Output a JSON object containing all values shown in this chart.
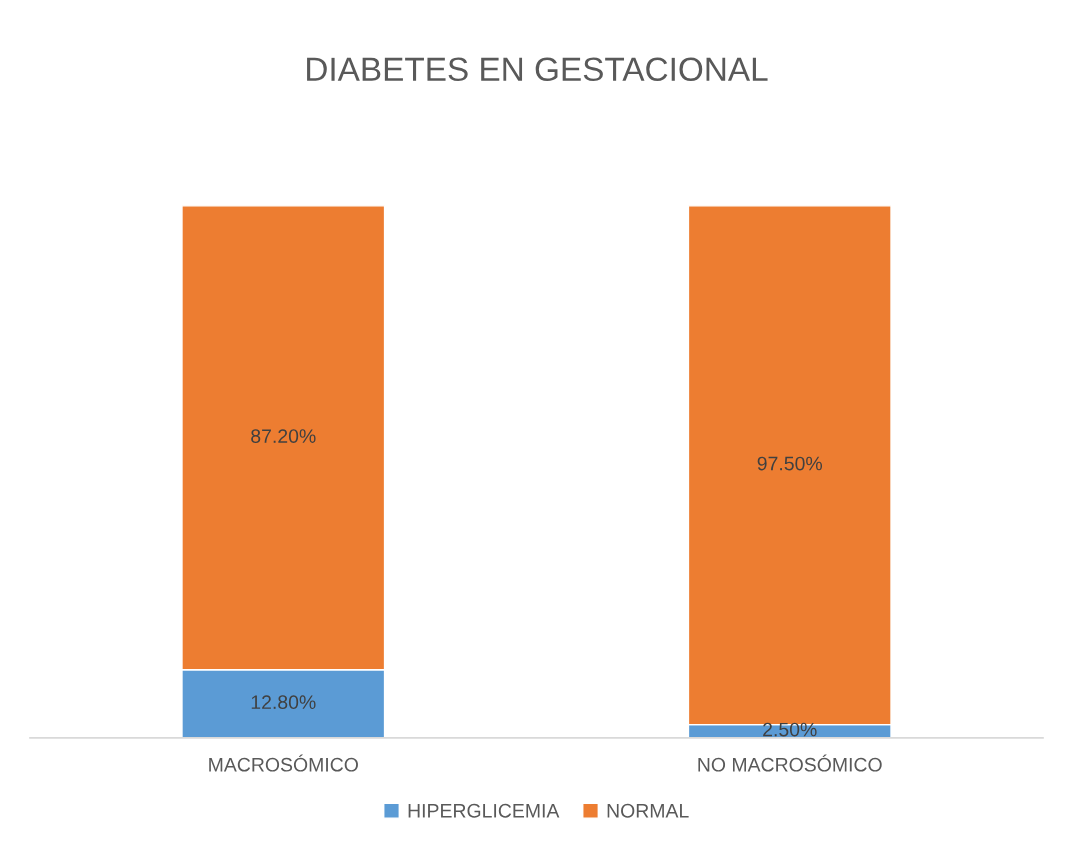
{
  "chart_data": {
    "type": "bar",
    "title": "DIABETES EN GESTACIONAL",
    "categories": [
      "MACROSÓMICO",
      "NO MACROSÓMICO"
    ],
    "stacked": true,
    "series": [
      {
        "name": "HIPERGLICEMIA",
        "color": "#5b9bd5",
        "values": [
          12.8,
          2.5
        ],
        "value_labels": [
          "12.80%",
          "2.50%"
        ]
      },
      {
        "name": "NORMAL",
        "color": "#ed7d31",
        "values": [
          87.2,
          97.5
        ],
        "value_labels": [
          "87.20%",
          "97.50%"
        ]
      }
    ],
    "tick_labels": "x",
    "grid": false,
    "legend": "bottom"
  }
}
